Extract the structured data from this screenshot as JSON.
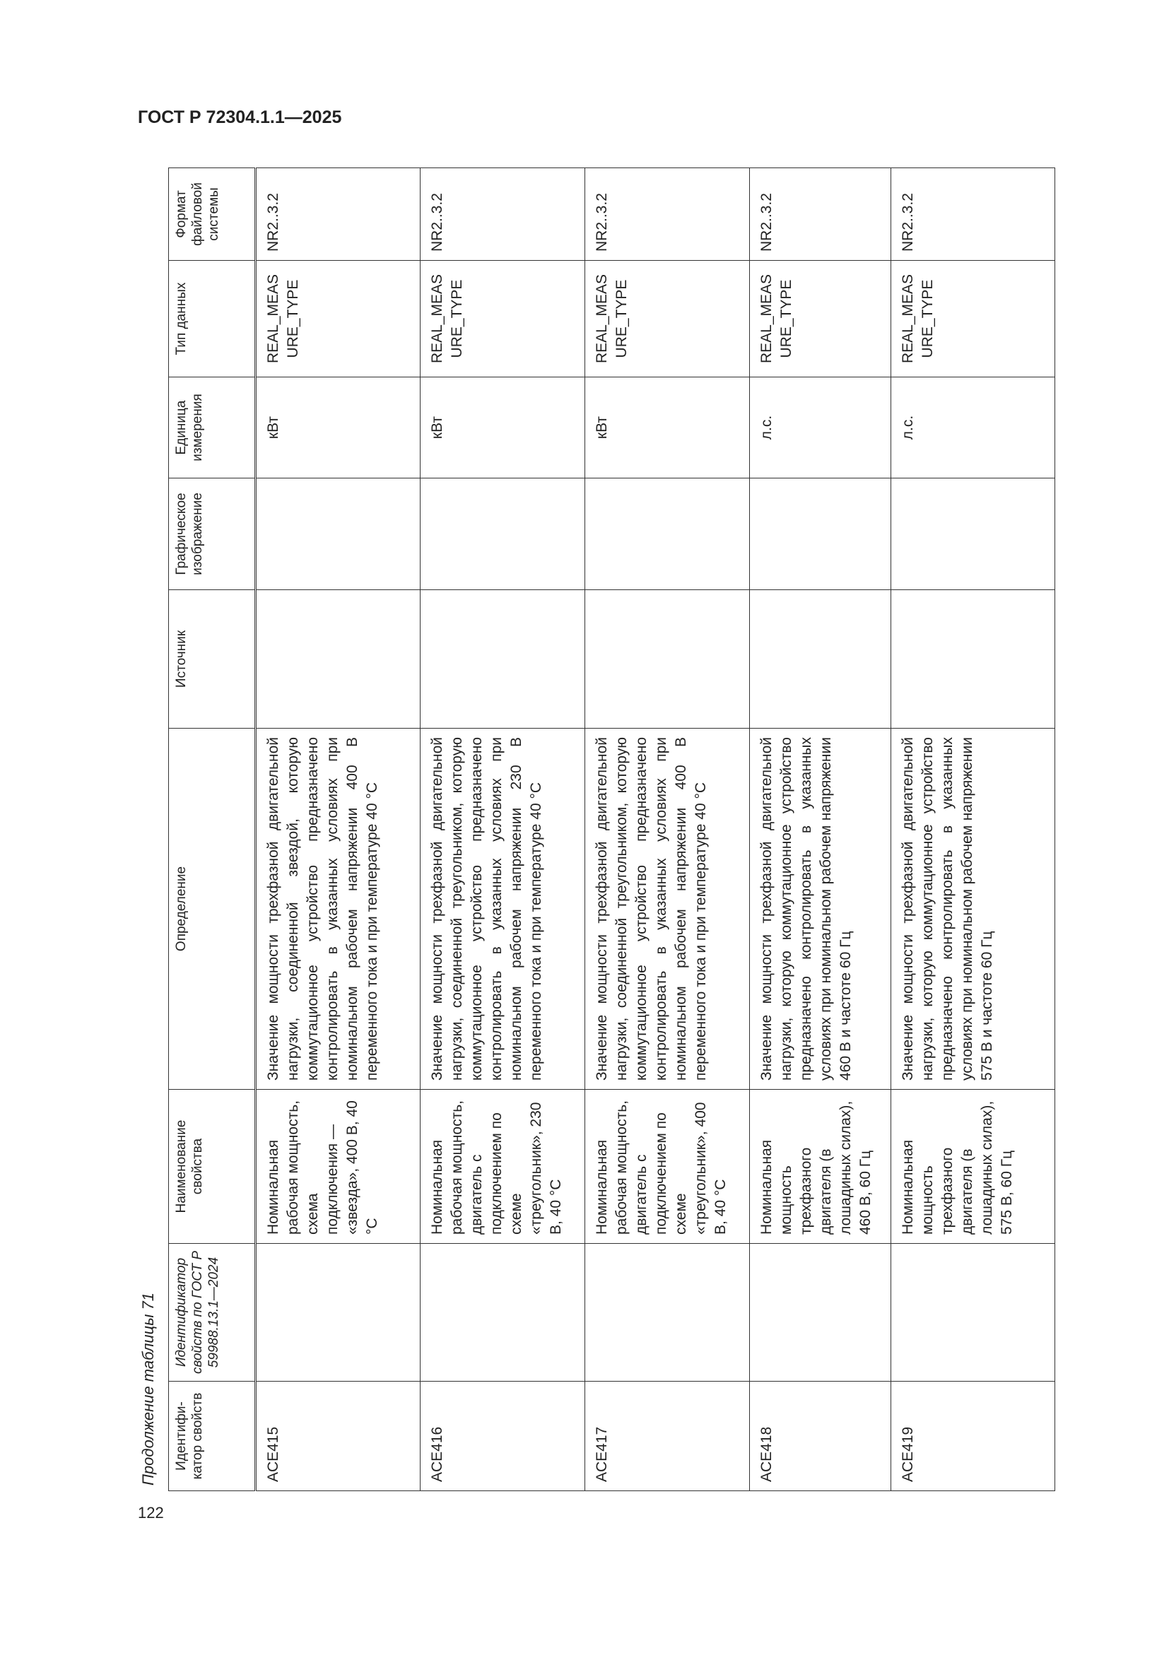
{
  "header": {
    "title": "ГОСТ Р 72304.1.1—2025"
  },
  "page_number": "122",
  "table": {
    "caption": "Продолжение таблицы 71",
    "columns": [
      "Идентифи-катор свойств",
      "Идентификатор свойств по ГОСТ Р 59988.13.1—2024",
      "Наименование свойства",
      "Определение",
      "Источник",
      "Графическое изображение",
      "Единица измерения",
      "Тип данных",
      "Формат файловой системы"
    ],
    "rows": [
      [
        "ACE415",
        null,
        "Номинальная рабочая мощность, схема подключения — «звезда», 400 В, 40 °С",
        "Значение мощности трехфазной двигательной нагрузки, соединенной звездой, которую коммутационное устройство предназначено контролировать в указанных условиях при номинальном рабочем напряжении 400 В переменного тока и при температуре 40 °С",
        null,
        null,
        "кВт",
        "REAL_MEASURE_TYPE",
        "NR2..3.2"
      ],
      [
        "ACE416",
        null,
        "Номинальная рабочая мощность, двигатель с подключением по схеме «треугольник», 230 В, 40 °С",
        "Значение мощности трехфазной двигательной нагрузки, соединенной треугольником, которую коммутационное устройство предназначено контролировать в указанных условиях при номинальном рабочем напряжении 230 В переменного тока и при температуре 40 °С",
        null,
        null,
        "кВт",
        "REAL_MEASURE_TYPE",
        "NR2..3.2"
      ],
      [
        "ACE417",
        null,
        "Номинальная рабочая мощность, двигатель с подключением по схеме «треугольник», 400 В, 40 °С",
        "Значение мощности трехфазной двигательной нагрузки, соединенной треугольником, которую коммутационное устройство предназначено контролировать в указанных условиях при номинальном рабочем напряжении 400 В переменного тока и при температуре 40 °С",
        null,
        null,
        "кВт",
        "REAL_MEASURE_TYPE",
        "NR2..3.2"
      ],
      [
        "ACE418",
        null,
        "Номинальная мощность трехфазного двигателя (в лошадиных силах), 460 В, 60 Гц",
        "Значение мощности трехфазной двигательной нагрузки, которую коммутационное устройство предназначено контролировать в указанных условиях при номинальном рабочем напряжении 460 В и частоте 60 Гц",
        null,
        null,
        "л.с.",
        "REAL_MEASURE_TYPE",
        "NR2..3.2"
      ],
      [
        "ACE419",
        null,
        "Номинальная мощность трехфазного двигателя (в лошадиных силах), 575 В, 60 Гц",
        "Значение мощности трехфазной двигательной нагрузки, которую коммутационное устройство предназначено контролировать в указанных условиях при номинальном рабочем напряжении 575 В и частоте 60 Гц",
        null,
        null,
        "л.с.",
        "REAL_MEASURE_TYPE",
        "NR2..3.2"
      ]
    ]
  }
}
